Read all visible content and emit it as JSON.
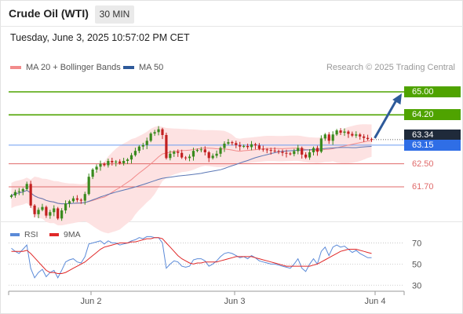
{
  "header": {
    "title": "Crude Oil (WTI)",
    "timeframe_label": "30 MIN"
  },
  "datetime": "Tuesday, June 3, 2025 10:57:02 PM CET",
  "legend": {
    "bb_label": "MA 20 + Bollinger Bands",
    "ma50_label": "MA 50",
    "credit": "Research © 2025 Trading Central"
  },
  "rsi_legend": {
    "rsi_label": "RSI",
    "ma_label": "9MA"
  },
  "colors": {
    "candle_up": "#3a8a1d",
    "candle_down": "#c22020",
    "bb_fill": "#fde2e2",
    "ma20": "#f28b8b",
    "ma50": "#5b77b5",
    "resistance": "#4fa300",
    "support": "#e06a6a",
    "pivot": "#6a9cf0",
    "arrow": "#2e5a9a",
    "rsi": "#5b8ad8",
    "rsi_ma": "#e02828"
  },
  "chart_data": [
    {
      "type": "candlestick",
      "y_range": [
        60.5,
        65.6
      ],
      "x_ticks": [
        "Jun 2",
        "Jun 3",
        "Jun 4"
      ],
      "pivot": 63.15,
      "last_price": 63.34,
      "levels": [
        {
          "label": "65.00",
          "value": 65.0,
          "kind": "resistance"
        },
        {
          "label": "64.20",
          "value": 64.2,
          "kind": "resistance"
        },
        {
          "label": "63.34",
          "value": 63.34,
          "kind": "last"
        },
        {
          "label": "63.15",
          "value": 63.15,
          "kind": "pivot"
        },
        {
          "label": "62.50",
          "value": 62.5,
          "kind": "support"
        },
        {
          "label": "61.70",
          "value": 61.7,
          "kind": "support"
        }
      ],
      "arrow_target": 65.0,
      "close": [
        61.4,
        61.52,
        61.55,
        61.62,
        61.8,
        61.05,
        60.75,
        60.9,
        61.0,
        60.7,
        60.82,
        60.95,
        60.6,
        60.88,
        61.12,
        61.2,
        61.3,
        61.25,
        61.22,
        61.45,
        62.05,
        62.3,
        62.4,
        62.5,
        62.45,
        62.6,
        62.55,
        62.58,
        62.52,
        62.6,
        62.65,
        62.8,
        62.95,
        63.1,
        63.15,
        63.3,
        63.55,
        63.6,
        63.7,
        63.5,
        62.7,
        62.85,
        62.92,
        62.88,
        62.72,
        62.7,
        62.75,
        62.95,
        62.98,
        63.0,
        62.9,
        62.7,
        62.78,
        62.85,
        63.05,
        63.2,
        63.25,
        63.22,
        63.15,
        63.1,
        63.12,
        63.08,
        63.18,
        63.14,
        63.02,
        63.0,
        62.98,
        62.96,
        62.94,
        62.92,
        62.88,
        62.86,
        62.84,
        62.94,
        63.05,
        62.82,
        62.72,
        62.9,
        63.05,
        62.92,
        63.38,
        63.52,
        63.3,
        63.52,
        63.66,
        63.58,
        63.62,
        63.54,
        63.48,
        63.52,
        63.45,
        63.4,
        63.36,
        63.34
      ]
    },
    {
      "type": "line",
      "y_range": [
        25,
        80
      ],
      "y_ticks": [
        "70",
        "50",
        "30"
      ],
      "series": [
        {
          "name": "RSI",
          "values": [
            65,
            62,
            60,
            64,
            68,
            46,
            37,
            42,
            45,
            38,
            42,
            44,
            37,
            44,
            52,
            54,
            55,
            52,
            51,
            57,
            69,
            70,
            71,
            72,
            69,
            72,
            70,
            70,
            68,
            69,
            70,
            72,
            73,
            75,
            74,
            76,
            76,
            75,
            75,
            70,
            46,
            50,
            53,
            52,
            48,
            47,
            48,
            54,
            55,
            55,
            53,
            48,
            50,
            53,
            57,
            60,
            61,
            60,
            58,
            56,
            57,
            55,
            58,
            56,
            53,
            52,
            51,
            50,
            50,
            49,
            48,
            47,
            46,
            50,
            55,
            46,
            43,
            50,
            55,
            50,
            62,
            66,
            58,
            66,
            68,
            66,
            67,
            64,
            61,
            63,
            60,
            58,
            56,
            56
          ]
        },
        {
          "name": "9MA",
          "values": [
            62,
            62,
            62,
            62,
            63,
            60,
            56,
            52,
            48,
            44,
            42,
            42,
            41,
            41,
            42,
            44,
            46,
            48,
            50,
            52,
            55,
            58,
            61,
            64,
            66,
            67,
            68,
            69,
            70,
            70,
            70,
            71,
            71,
            72,
            73,
            74,
            74,
            75,
            75,
            74,
            70,
            66,
            62,
            58,
            55,
            53,
            51,
            50,
            51,
            51,
            52,
            52,
            52,
            52,
            53,
            54,
            55,
            56,
            57,
            57,
            57,
            57,
            57,
            56,
            55,
            54,
            53,
            52,
            51,
            50,
            49,
            48,
            48,
            48,
            48,
            48,
            48,
            48,
            49,
            50,
            52,
            54,
            56,
            58,
            60,
            62,
            63,
            64,
            64,
            64,
            63,
            62,
            61,
            60
          ]
        }
      ]
    }
  ]
}
